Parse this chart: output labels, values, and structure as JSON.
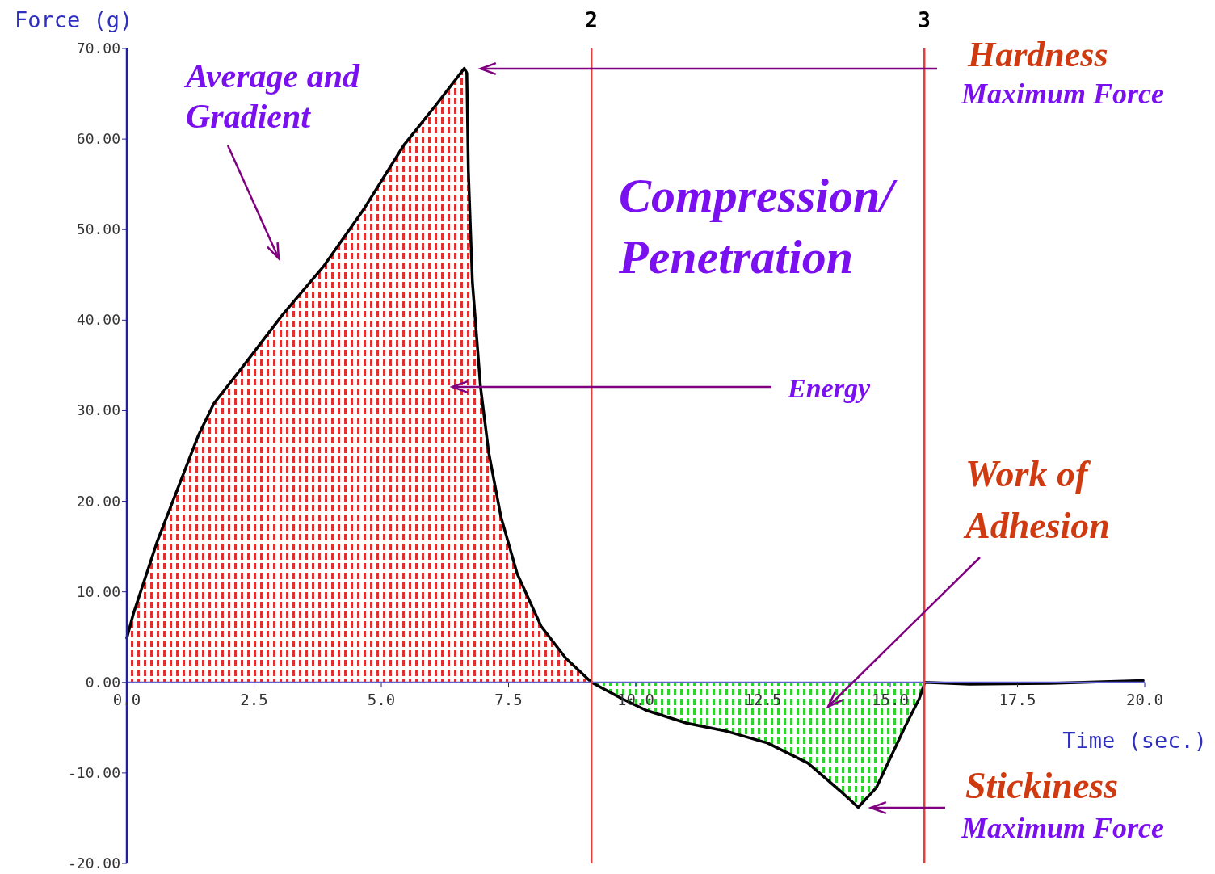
{
  "chart_data": {
    "type": "line",
    "xlabel": "Time (sec.)",
    "ylabel": "Force (g)",
    "xlim": [
      0,
      20
    ],
    "ylim": [
      -20,
      70
    ],
    "xticks": [
      {
        "value": 0,
        "label": "0.0"
      },
      {
        "value": 2.5,
        "label": "2.5"
      },
      {
        "value": 5,
        "label": "5.0"
      },
      {
        "value": 7.5,
        "label": "7.5"
      },
      {
        "value": 10,
        "label": "10.0"
      },
      {
        "value": 12.5,
        "label": "12.5"
      },
      {
        "value": 15,
        "label": "15.0"
      },
      {
        "value": 17.5,
        "label": "17.5"
      },
      {
        "value": 20,
        "label": "20.0"
      }
    ],
    "yticks": [
      {
        "value": -20,
        "label": "-20.00"
      },
      {
        "value": -10,
        "label": "-10.00"
      },
      {
        "value": 0,
        "label": "0.00"
      },
      {
        "value": 10,
        "label": "10.00"
      },
      {
        "value": 20,
        "label": "20.00"
      },
      {
        "value": 30,
        "label": "30.00"
      },
      {
        "value": 40,
        "label": "40.00"
      },
      {
        "value": 50,
        "label": "50.00"
      },
      {
        "value": 60,
        "label": "60.00"
      },
      {
        "value": 70,
        "label": "70.00"
      }
    ],
    "grid": false,
    "marker": "none",
    "line_style": "solid",
    "series": [
      {
        "type": "area",
        "color": "#e03030",
        "x": [
          0,
          0.13,
          0.6,
          1.4,
          1.71,
          2.27,
          3.06,
          3.86,
          4.65,
          5.44,
          6.08,
          6.63,
          6.68,
          6.71,
          6.79,
          6.95,
          7.11,
          7.35,
          7.67,
          8.14,
          8.62,
          9.13
        ],
        "values": [
          4.9,
          7.6,
          15.6,
          27.2,
          30.8,
          34.8,
          40.6,
          45.9,
          52.2,
          59.3,
          63.8,
          67.8,
          67.3,
          56.6,
          44.2,
          32.6,
          25.4,
          18.3,
          12.0,
          6.2,
          2.7,
          0
        ]
      },
      {
        "type": "area",
        "color": "#30d030",
        "x": [
          9.13,
          9.73,
          10.21,
          11.0,
          11.79,
          12.59,
          13.38,
          14.02,
          14.37,
          14.73,
          15.29,
          15.57,
          15.68
        ],
        "values": [
          0,
          -1.8,
          -3.1,
          -4.5,
          -5.4,
          -6.7,
          -8.9,
          -12.0,
          -13.8,
          -11.6,
          -4.9,
          -1.8,
          0
        ]
      },
      {
        "color": "#000000",
        "x": [
          0,
          0.13,
          0.6,
          1.4,
          1.71,
          2.27,
          3.06,
          3.86,
          4.65,
          5.44,
          6.08,
          6.63,
          6.68,
          6.71,
          6.79,
          6.95,
          7.11,
          7.35,
          7.67,
          8.14,
          8.62,
          9.13,
          9.73,
          10.21,
          11.0,
          11.79,
          12.59,
          13.38,
          14.02,
          14.37,
          14.73,
          15.29,
          15.57,
          15.68,
          16.56,
          18.14,
          19.97
        ],
        "values": [
          4.9,
          7.6,
          15.6,
          27.2,
          30.8,
          34.8,
          40.6,
          45.9,
          52.2,
          59.3,
          63.8,
          67.8,
          67.3,
          56.6,
          44.2,
          32.6,
          25.4,
          18.3,
          12.0,
          6.2,
          2.7,
          0,
          -1.8,
          -3.1,
          -4.5,
          -5.4,
          -6.7,
          -8.9,
          -12.0,
          -13.8,
          -11.6,
          -4.9,
          -1.8,
          0,
          -0.2,
          -0.1,
          0.2
        ]
      }
    ],
    "ref_lines": [
      {
        "axis": "x",
        "value": 9.13,
        "color": "#e04040"
      },
      {
        "axis": "x",
        "value": 15.67,
        "color": "#e04040"
      }
    ],
    "annotations": [
      "Average and Gradient",
      "Hardness",
      "Maximum Force",
      "Compression/ Penetration",
      "Energy",
      "Work of Adhesion",
      "Stickiness",
      "Maximum Force",
      "2",
      "3"
    ]
  }
}
